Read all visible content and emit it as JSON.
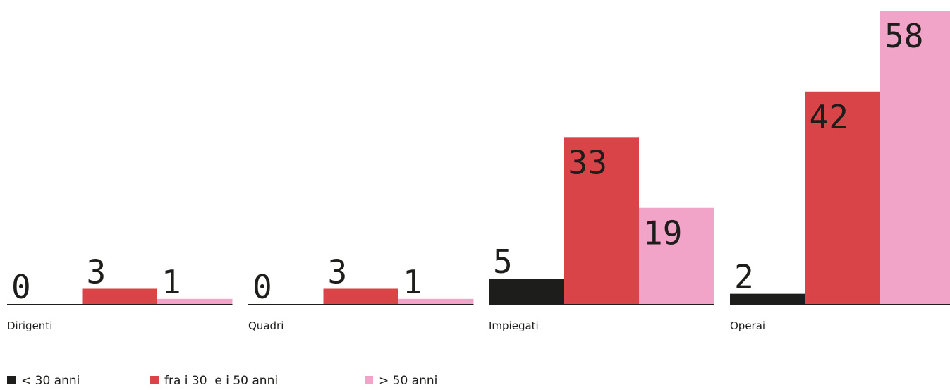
{
  "chart_data": {
    "type": "bar",
    "categories": [
      "Dirigenti",
      "Quadri",
      "Impiegati",
      "Operai"
    ],
    "series": [
      {
        "name": "< 30 anni",
        "color": "#1d1d1b",
        "values": [
          0,
          0,
          5,
          2
        ]
      },
      {
        "name": "fra i 30  e i 50 anni",
        "color": "#d94448",
        "values": [
          3,
          3,
          33,
          42
        ]
      },
      {
        "name": "> 50 anni",
        "color": "#f2a3c8",
        "values": [
          1,
          1,
          19,
          58
        ]
      }
    ]
  }
}
